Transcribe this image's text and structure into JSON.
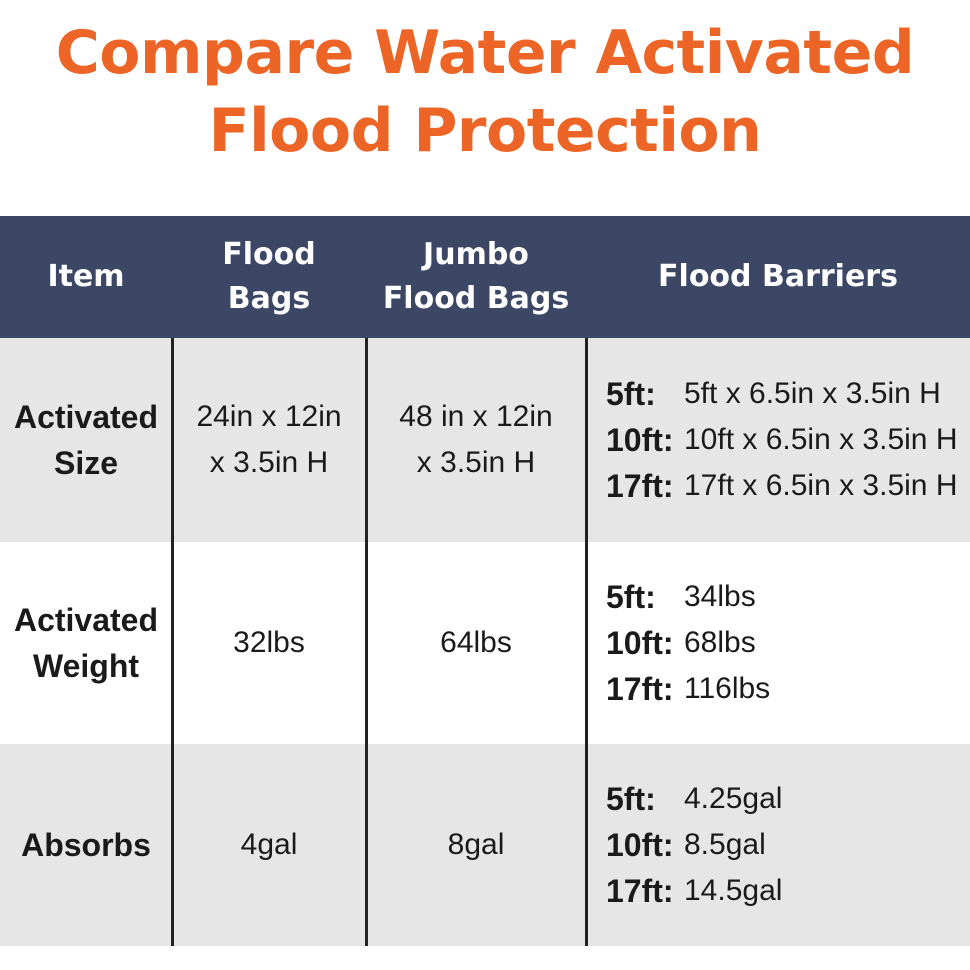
{
  "title": {
    "line1": "Compare Water Activated",
    "line2": "Flood Protection"
  },
  "table": {
    "headers": [
      {
        "lines": [
          "Item"
        ]
      },
      {
        "lines": [
          "Flood",
          "Bags"
        ]
      },
      {
        "lines": [
          "Jumbo",
          "Flood Bags"
        ]
      },
      {
        "lines": [
          "Flood Barriers"
        ]
      }
    ],
    "rows": [
      {
        "item": [
          "Activated",
          "Size"
        ],
        "flood_bags": [
          "24in x 12in",
          "x 3.5in H"
        ],
        "jumbo_flood_bags": [
          "48 in x 12in",
          "x 3.5in H"
        ],
        "barriers": [
          {
            "label": "5ft:",
            "value": "5ft x 6.5in x 3.5in H"
          },
          {
            "label": "10ft:",
            "value": "10ft x 6.5in x 3.5in H"
          },
          {
            "label": "17ft:",
            "value": "17ft x 6.5in x 3.5in H"
          }
        ]
      },
      {
        "item": [
          "Activated",
          "Weight"
        ],
        "flood_bags": [
          "32lbs"
        ],
        "jumbo_flood_bags": [
          "64lbs"
        ],
        "barriers": [
          {
            "label": "5ft:",
            "value": "34lbs"
          },
          {
            "label": "10ft:",
            "value": "68lbs"
          },
          {
            "label": "17ft:",
            "value": "116lbs"
          }
        ]
      },
      {
        "item": [
          "Absorbs"
        ],
        "flood_bags": [
          "4gal"
        ],
        "jumbo_flood_bags": [
          "8gal"
        ],
        "barriers": [
          {
            "label": "5ft:",
            "value": "4.25gal"
          },
          {
            "label": "10ft:",
            "value": "8.5gal"
          },
          {
            "label": "17ft:",
            "value": "14.5gal"
          }
        ]
      }
    ]
  },
  "colors": {
    "title": "#ec6526",
    "header_bg": "#3c4665",
    "row_shade": "#e6e6e6"
  }
}
